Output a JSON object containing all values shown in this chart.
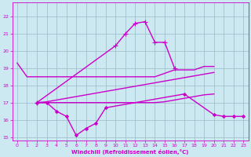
{
  "background_color": "#cce8f0",
  "line_color": "#cc00cc",
  "grid_color": "#99bbcc",
  "xlabel": "Windchill (Refroidissement éolien,°C)",
  "xlim": [
    -0.5,
    23.5
  ],
  "ylim": [
    14.8,
    22.8
  ],
  "yticks": [
    15,
    16,
    17,
    18,
    19,
    20,
    21,
    22
  ],
  "xticks": [
    0,
    1,
    2,
    3,
    4,
    5,
    6,
    7,
    8,
    9,
    10,
    11,
    12,
    13,
    14,
    15,
    16,
    17,
    18,
    19,
    20,
    21,
    22,
    23
  ],
  "series": [
    {
      "x": [
        0,
        1,
        2,
        3,
        4,
        5,
        6,
        7,
        8,
        9,
        10,
        11,
        12,
        13,
        14,
        15,
        16,
        17,
        18,
        19,
        20
      ],
      "y": [
        19.3,
        18.5,
        18.5,
        18.5,
        18.5,
        18.5,
        18.5,
        18.5,
        18.5,
        18.5,
        18.5,
        18.5,
        18.5,
        18.5,
        18.5,
        18.7,
        18.9,
        18.9,
        18.9,
        19.1,
        19.1
      ],
      "marker": null,
      "markersize": 0,
      "linewidth": 1.0,
      "linestyle": "-"
    },
    {
      "x": [
        2,
        3,
        4,
        5,
        6,
        7,
        8,
        9,
        17,
        20,
        21,
        22,
        23
      ],
      "y": [
        17.0,
        17.0,
        16.5,
        16.2,
        15.1,
        15.5,
        15.8,
        16.7,
        17.5,
        16.3,
        16.2,
        16.2,
        16.2
      ],
      "marker": "D",
      "markersize": 2.0,
      "linewidth": 1.0,
      "linestyle": "-"
    },
    {
      "x": [
        2,
        10,
        11,
        12,
        13,
        14,
        15,
        16
      ],
      "y": [
        17.0,
        20.3,
        21.0,
        21.6,
        21.7,
        20.5,
        20.5,
        19.0
      ],
      "marker": "+",
      "markersize": 4,
      "linewidth": 1.0,
      "linestyle": "-"
    },
    {
      "x": [
        2,
        3,
        4,
        5,
        6,
        7,
        8,
        9,
        10,
        11,
        12,
        13,
        14,
        15,
        16,
        17,
        18,
        19,
        20
      ],
      "y": [
        17.0,
        17.05,
        17.15,
        17.25,
        17.35,
        17.45,
        17.55,
        17.65,
        17.75,
        17.85,
        17.95,
        18.05,
        18.15,
        18.25,
        18.35,
        18.45,
        18.55,
        18.65,
        18.75
      ],
      "marker": null,
      "markersize": 0,
      "linewidth": 1.0,
      "linestyle": "-"
    },
    {
      "x": [
        2,
        3,
        4,
        5,
        6,
        7,
        8,
        9,
        10,
        11,
        12,
        13,
        14,
        15,
        16,
        17,
        18,
        19,
        20
      ],
      "y": [
        17.0,
        17.0,
        17.0,
        17.0,
        17.0,
        17.0,
        17.0,
        17.0,
        17.0,
        17.0,
        17.0,
        17.0,
        17.0,
        17.05,
        17.15,
        17.25,
        17.35,
        17.45,
        17.5
      ],
      "marker": null,
      "markersize": 0,
      "linewidth": 1.0,
      "linestyle": "-"
    }
  ]
}
